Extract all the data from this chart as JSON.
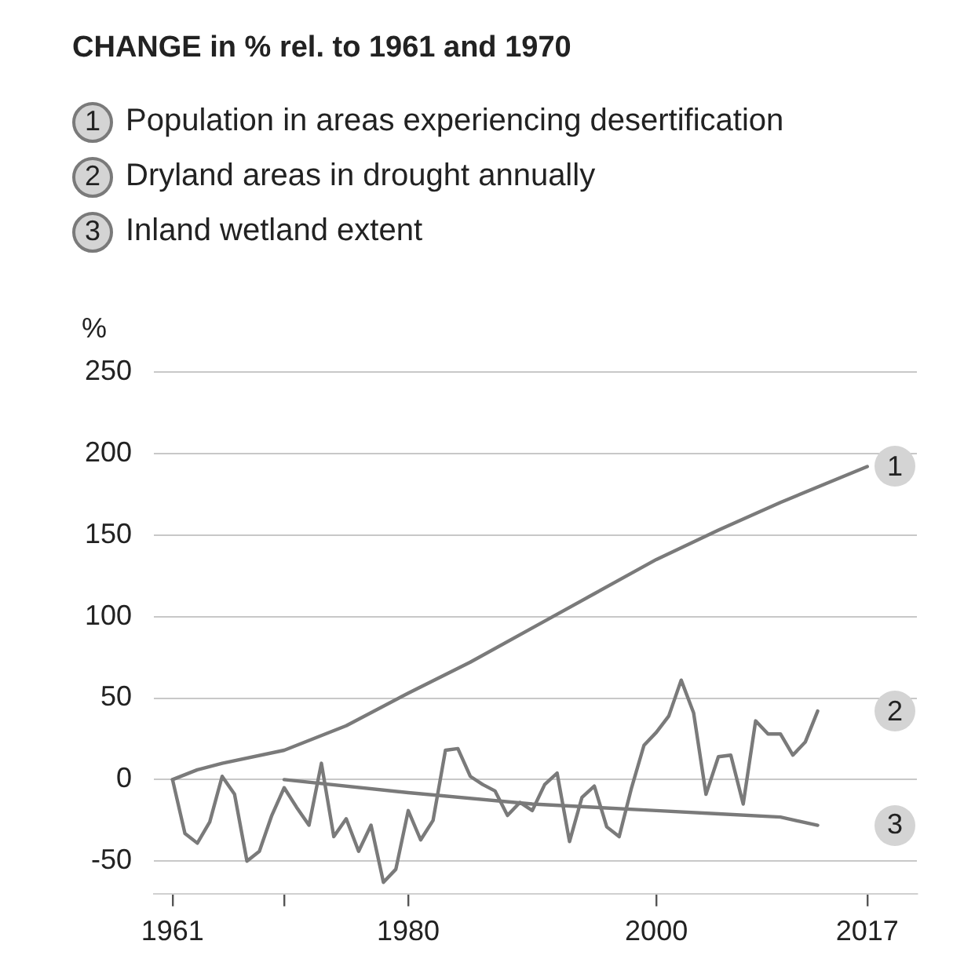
{
  "chart_data": {
    "type": "line",
    "title": "CHANGE in % rel. to 1961 and 1970",
    "ylabel": "%",
    "series": [
      {
        "name": "Population in areas experiencing desertification",
        "color": "#7a7a7a",
        "x": [
          1961,
          1963,
          1965,
          1970,
          1975,
          1980,
          1985,
          1990,
          1995,
          2000,
          2005,
          2010,
          2017
        ],
        "values": [
          0,
          6,
          10,
          18,
          33,
          53,
          72,
          93,
          114,
          135,
          153,
          170,
          192
        ]
      },
      {
        "name": "Dryland areas in drought annually",
        "color": "#7a7a7a",
        "x": [
          1961,
          1962,
          1963,
          1964,
          1965,
          1966,
          1967,
          1968,
          1969,
          1970,
          1971,
          1972,
          1973,
          1974,
          1975,
          1976,
          1977,
          1978,
          1979,
          1980,
          1981,
          1982,
          1983,
          1984,
          1985,
          1986,
          1987,
          1988,
          1989,
          1990,
          1991,
          1992,
          1993,
          1994,
          1995,
          1996,
          1997,
          1998,
          1999,
          2000,
          2001,
          2002,
          2003,
          2004,
          2005,
          2006,
          2007,
          2008,
          2009,
          2010,
          2011,
          2012,
          2013
        ],
        "values": [
          0,
          -33,
          -39,
          -26,
          2,
          -9,
          -50,
          -44,
          -22,
          -5,
          -17,
          -28,
          10,
          -35,
          -24,
          -44,
          -28,
          -63,
          -55,
          -19,
          -37,
          -25,
          18,
          19,
          2,
          -3,
          -7,
          -22,
          -14,
          -19,
          -3,
          4,
          -38,
          -11,
          -4,
          -29,
          -35,
          -5,
          21,
          29,
          39,
          61,
          41,
          -9,
          14,
          15,
          -15,
          36,
          28,
          28,
          15,
          23,
          42
        ]
      },
      {
        "name": "Inland wetland extent",
        "color": "#7a7a7a",
        "x": [
          1970,
          1980,
          1990,
          2000,
          2005,
          2010,
          2013
        ],
        "values": [
          0,
          -8,
          -15,
          -19,
          -21,
          -23,
          -28
        ]
      }
    ],
    "xlim": [
      1959.5,
      2021
    ],
    "xticks": [
      1961,
      {
        "value": 1970,
        "label": null
      },
      1980,
      2000,
      2017
    ],
    "ylim": [
      -70,
      250
    ],
    "yticks": [
      -50,
      0,
      50,
      100,
      150,
      200,
      250
    ],
    "grid": "y",
    "legend": "top",
    "annotations": [
      "1",
      "2",
      "3"
    ]
  }
}
